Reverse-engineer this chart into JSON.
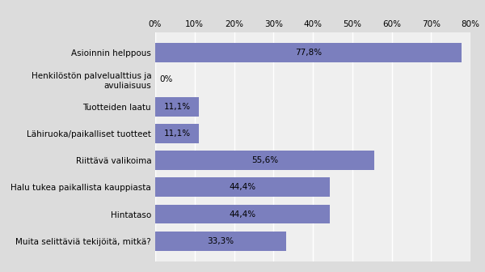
{
  "categories": [
    "Muita selittäviä tekijöitä, mitkä?",
    "Hintataso",
    "Halu tukea paikallista kauppiasta",
    "Riittävä valikoima",
    "Lähiruoka/paikalliset tuotteet",
    "Tuotteiden laatu",
    "Henkilöstön palvelualttius ja\navuliaisuus",
    "Asioinnin helppous"
  ],
  "values": [
    33.3,
    44.4,
    44.4,
    55.6,
    11.1,
    11.1,
    0.0,
    77.8
  ],
  "labels": [
    "33,3%",
    "44,4%",
    "44,4%",
    "55,6%",
    "11,1%",
    "11,1%",
    "0%",
    "77,8%"
  ],
  "bar_color": "#7b7fbe",
  "outer_bg": "#dcdcdc",
  "plot_bg": "#efefef",
  "xlim": [
    0,
    80
  ],
  "xticks": [
    0,
    10,
    20,
    30,
    40,
    50,
    60,
    70,
    80
  ],
  "xtick_labels": [
    "0%",
    "10%",
    "20%",
    "30%",
    "40%",
    "50%",
    "60%",
    "70%",
    "80%"
  ],
  "label_fontsize": 7.5,
  "tick_fontsize": 7.5,
  "bar_label_fontsize": 7.5,
  "bar_height": 0.72
}
